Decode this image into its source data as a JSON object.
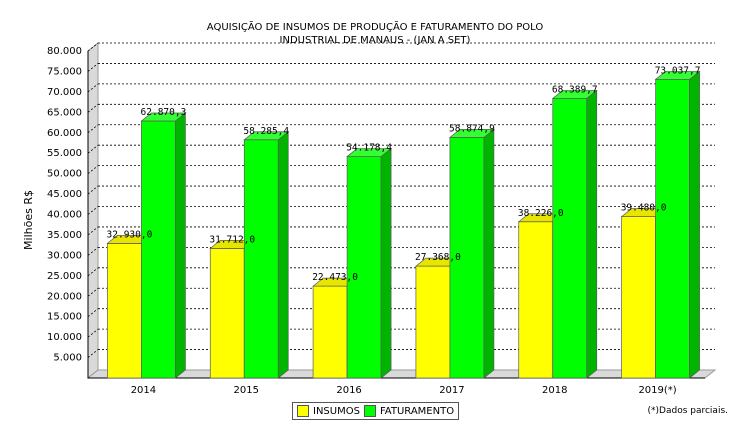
{
  "chart_data": {
    "type": "bar",
    "title": [
      "AQUISIÇÃO DE INSUMOS DE PRODUÇÃO E FATURAMENTO DO POLO",
      "INDUSTRIAL DE MANAUS - (JAN A SET)"
    ],
    "ylabel": "Milhões R$",
    "xlabel": "",
    "categories": [
      "2014",
      "2015",
      "2016",
      "2017",
      "2018",
      "2019(*)"
    ],
    "series": [
      {
        "name": "INSUMOS",
        "color": "#ffff00",
        "values": [
          32930.0,
          31712.0,
          22473.0,
          27368.0,
          38226.0,
          39480.0
        ],
        "labels": [
          "32.930,0",
          "31.712,0",
          "22.473,0",
          "27.368,0",
          "38.226,0",
          "39.480,0"
        ]
      },
      {
        "name": "FATURAMENTO",
        "color": "#00ff00",
        "values": [
          62870.3,
          58285.4,
          54178.4,
          58874.9,
          68389.7,
          73037.7
        ],
        "labels": [
          "62.870,3",
          "58.285,4",
          "54.178,4",
          "58.874,9",
          "68.389,7",
          "73.037,7"
        ]
      }
    ],
    "ylim": [
      0,
      80000
    ],
    "yticks": [
      "5.000",
      "10.000",
      "15.000",
      "20.000",
      "25.000",
      "30.000",
      "35.000",
      "40.000",
      "45.000",
      "50.000",
      "55.000",
      "60.000",
      "65.000",
      "70.000",
      "75.000",
      "80.000"
    ],
    "grid": true,
    "legend_position": "bottom-center",
    "note": "(*)Dados parciais."
  }
}
